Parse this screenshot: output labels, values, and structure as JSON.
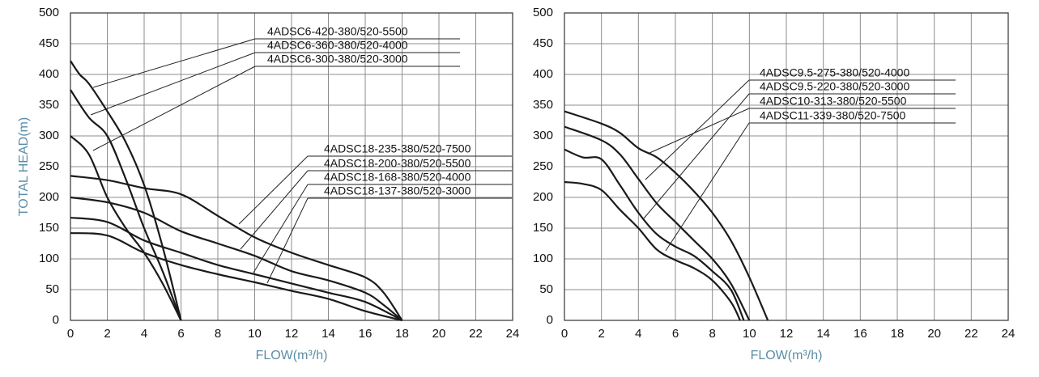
{
  "chart_data": [
    {
      "type": "line",
      "x_label": "FLOW(m³/h)",
      "y_label": "TOTAL HEAD(m)",
      "xlim": [
        0,
        24
      ],
      "xticks": [
        0,
        2,
        4,
        6,
        8,
        10,
        12,
        14,
        16,
        18,
        20,
        22,
        24
      ],
      "ylim": [
        0,
        500
      ],
      "yticks": [
        0,
        50,
        100,
        150,
        200,
        250,
        300,
        350,
        400,
        450,
        500
      ],
      "grid": true,
      "series": [
        {
          "name": "4ADSC6-420-380/520-5500",
          "color": "#1a1a1a",
          "x": [
            0,
            0.5,
            1,
            2,
            3,
            4,
            5,
            6
          ],
          "values": [
            422,
            400,
            385,
            340,
            290,
            220,
            120,
            0
          ]
        },
        {
          "name": "4ADSC6-360-380/520-4000",
          "color": "#1a1a1a",
          "x": [
            0,
            1,
            2,
            3,
            4,
            5,
            6
          ],
          "values": [
            375,
            330,
            300,
            230,
            150,
            80,
            0
          ]
        },
        {
          "name": "4ADSC6-300-380/520-3000",
          "color": "#1a1a1a",
          "x": [
            0,
            1,
            2,
            3,
            4,
            5,
            6
          ],
          "values": [
            300,
            270,
            200,
            150,
            110,
            60,
            0
          ]
        },
        {
          "name": "4ADSC18-235-380/520-7500",
          "color": "#1a1a1a",
          "x": [
            0,
            2,
            4,
            6,
            8,
            10,
            12,
            14,
            16,
            17,
            18
          ],
          "values": [
            235,
            228,
            215,
            205,
            170,
            135,
            110,
            90,
            70,
            45,
            0
          ]
        },
        {
          "name": "4ADSC18-200-380/520-5500",
          "color": "#1a1a1a",
          "x": [
            0,
            2,
            4,
            6,
            8,
            10,
            12,
            14,
            16,
            17,
            18
          ],
          "values": [
            200,
            192,
            175,
            145,
            125,
            105,
            80,
            65,
            45,
            25,
            0
          ]
        },
        {
          "name": "4ADSC18-168-380/520-4000",
          "color": "#1a1a1a",
          "x": [
            0,
            2,
            4,
            6,
            8,
            10,
            12,
            14,
            16,
            18
          ],
          "values": [
            167,
            160,
            130,
            110,
            90,
            75,
            60,
            45,
            30,
            0
          ]
        },
        {
          "name": "4ADSC18-137-380/520-3000",
          "color": "#1a1a1a",
          "x": [
            0,
            2,
            4,
            6,
            8,
            10,
            12,
            14,
            16,
            18
          ],
          "values": [
            142,
            138,
            110,
            90,
            75,
            62,
            48,
            35,
            15,
            0
          ]
        }
      ]
    },
    {
      "type": "line",
      "x_label": "FLOW(m³/h)",
      "xlim": [
        0,
        24
      ],
      "xticks": [
        0,
        2,
        4,
        6,
        8,
        10,
        12,
        14,
        16,
        18,
        20,
        22,
        24
      ],
      "ylim": [
        0,
        500
      ],
      "yticks": [
        0,
        50,
        100,
        150,
        200,
        250,
        300,
        350,
        400,
        450,
        500
      ],
      "grid": true,
      "series": [
        {
          "name": "4ADSC9.5-275-380/520-4000",
          "color": "#1a1a1a",
          "x": [
            0,
            1,
            2,
            3,
            4,
            5,
            6,
            7,
            8,
            9,
            9.7
          ],
          "values": [
            278,
            265,
            262,
            220,
            175,
            140,
            120,
            105,
            80,
            50,
            0
          ]
        },
        {
          "name": "4ADSC9.5-220-380/520-3000",
          "color": "#1a1a1a",
          "x": [
            0,
            1,
            2,
            3,
            4,
            5,
            6,
            7,
            8,
            9,
            9.5
          ],
          "values": [
            225,
            222,
            212,
            180,
            150,
            115,
            98,
            85,
            65,
            30,
            0
          ]
        },
        {
          "name": "4ADSC10-313-380/520-5500",
          "color": "#1a1a1a",
          "x": [
            0,
            2,
            3,
            4,
            5,
            6,
            7,
            8,
            9,
            10
          ],
          "values": [
            315,
            293,
            270,
            230,
            190,
            160,
            130,
            100,
            60,
            0
          ]
        },
        {
          "name": "4ADSC11-339-380/520-7500",
          "color": "#1a1a1a",
          "x": [
            0,
            2,
            3,
            4,
            5,
            6,
            7,
            8,
            9,
            10,
            11
          ],
          "values": [
            340,
            320,
            305,
            280,
            265,
            240,
            210,
            175,
            130,
            70,
            0
          ]
        }
      ]
    }
  ]
}
